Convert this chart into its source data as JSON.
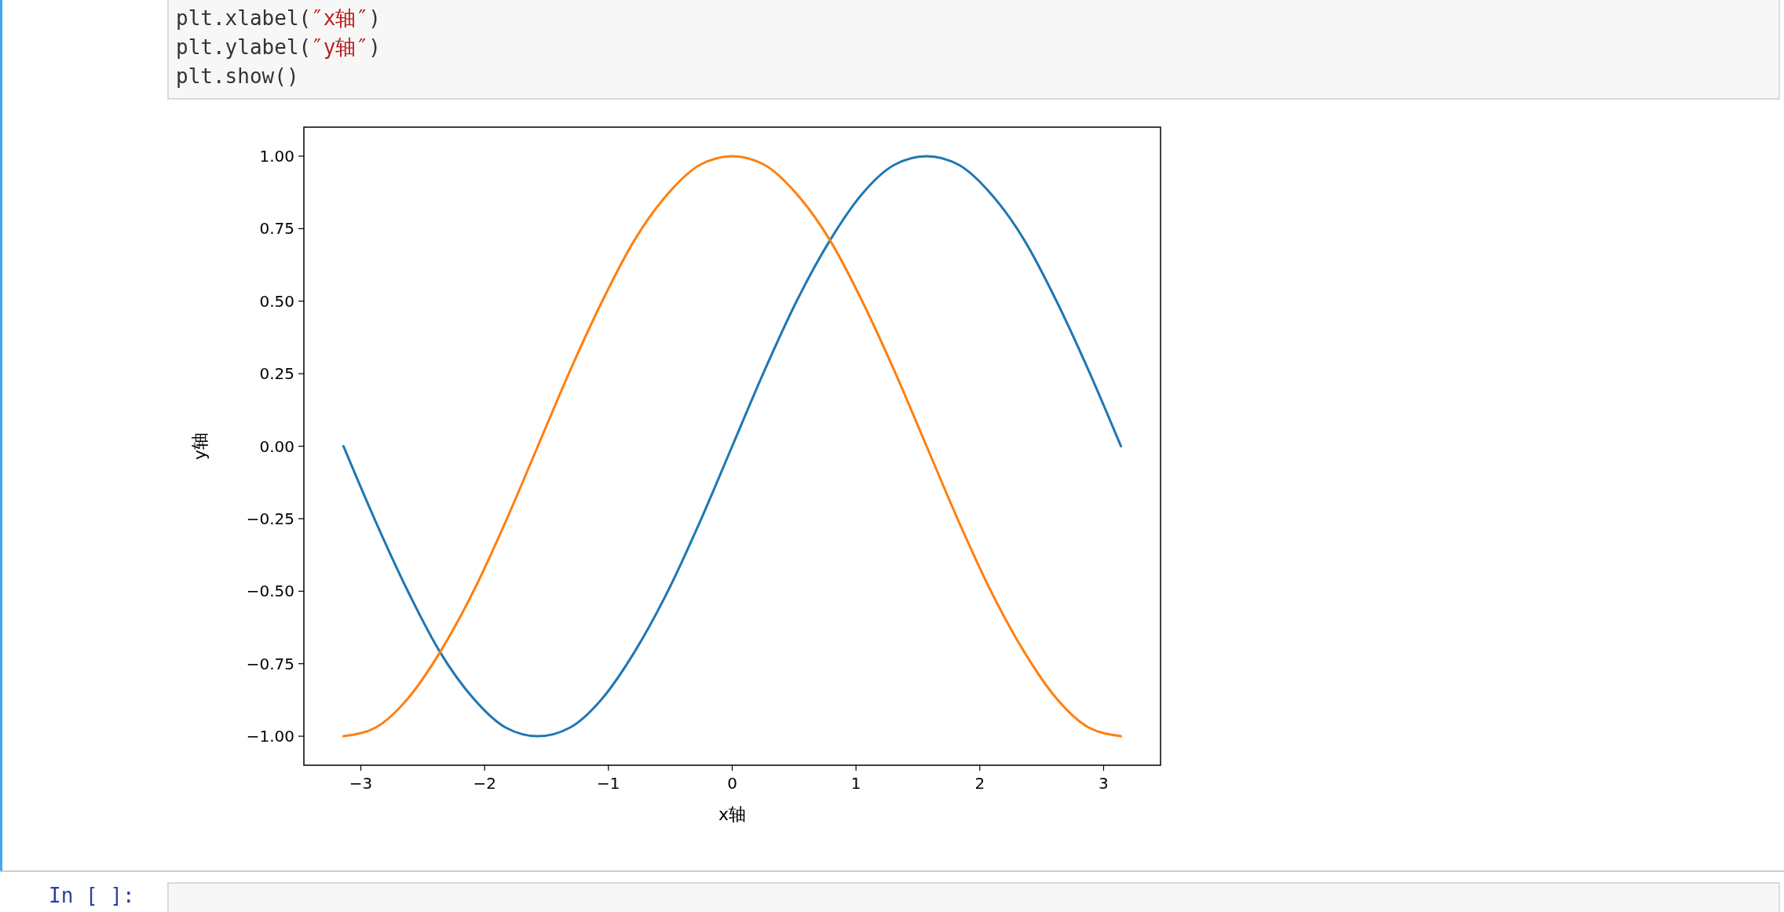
{
  "chart_data": {
    "type": "line",
    "xlabel": "x轴",
    "ylabel": "y轴",
    "annotations": [
      "plt.xlabel(″x轴″)",
      "plt.ylabel(″y轴″)",
      "plt.show()",
      "In [ ]:"
    ],
    "x": [
      -3.14,
      -2.88,
      -2.62,
      -2.36,
      -2.09,
      -1.83,
      -1.57,
      -1.31,
      -1.05,
      -0.79,
      -0.52,
      -0.26,
      0,
      0.26,
      0.52,
      0.79,
      1.05,
      1.31,
      1.57,
      1.83,
      2.09,
      2.36,
      2.62,
      2.88,
      3.14
    ],
    "series": [
      {
        "color": "#1f77b4",
        "values": [
          0,
          -0.26,
          -0.5,
          -0.71,
          -0.87,
          -0.97,
          -1,
          -0.97,
          -0.87,
          -0.71,
          -0.5,
          -0.26,
          0,
          0.26,
          0.5,
          0.71,
          0.87,
          0.97,
          1,
          0.97,
          0.87,
          0.71,
          0.5,
          0.26,
          0
        ]
      },
      {
        "color": "#ff7f0e",
        "values": [
          -1,
          -0.97,
          -0.87,
          -0.71,
          -0.5,
          -0.26,
          0,
          0.26,
          0.5,
          0.71,
          0.87,
          0.97,
          1,
          0.97,
          0.87,
          0.71,
          0.5,
          0.26,
          0,
          -0.26,
          -0.5,
          -0.71,
          -0.87,
          -0.97,
          -1
        ]
      }
    ],
    "xlim": [
      -3.46,
      3.46
    ],
    "xticks": [
      {
        "value": -3,
        "label": "−3"
      },
      {
        "value": -2,
        "label": "−2"
      },
      {
        "value": -1,
        "label": "−1"
      },
      {
        "value": 0,
        "label": "0"
      },
      {
        "value": 1,
        "label": "1"
      },
      {
        "value": 2,
        "label": "2"
      },
      {
        "value": 3,
        "label": "3"
      }
    ],
    "ylim": [
      -1.1,
      1.1
    ],
    "yticks": [
      {
        "value": -1,
        "label": "−1.00"
      },
      {
        "value": -0.75,
        "label": "−0.75"
      },
      {
        "value": -0.5,
        "label": "−0.50"
      },
      {
        "value": -0.25,
        "label": "−0.25"
      },
      {
        "value": 0,
        "label": "0.00"
      },
      {
        "value": 0.25,
        "label": "0.25"
      },
      {
        "value": 0.5,
        "label": "0.50"
      },
      {
        "value": 0.75,
        "label": "0.75"
      },
      {
        "value": 1,
        "label": "1.00"
      }
    ],
    "grid": false
  }
}
